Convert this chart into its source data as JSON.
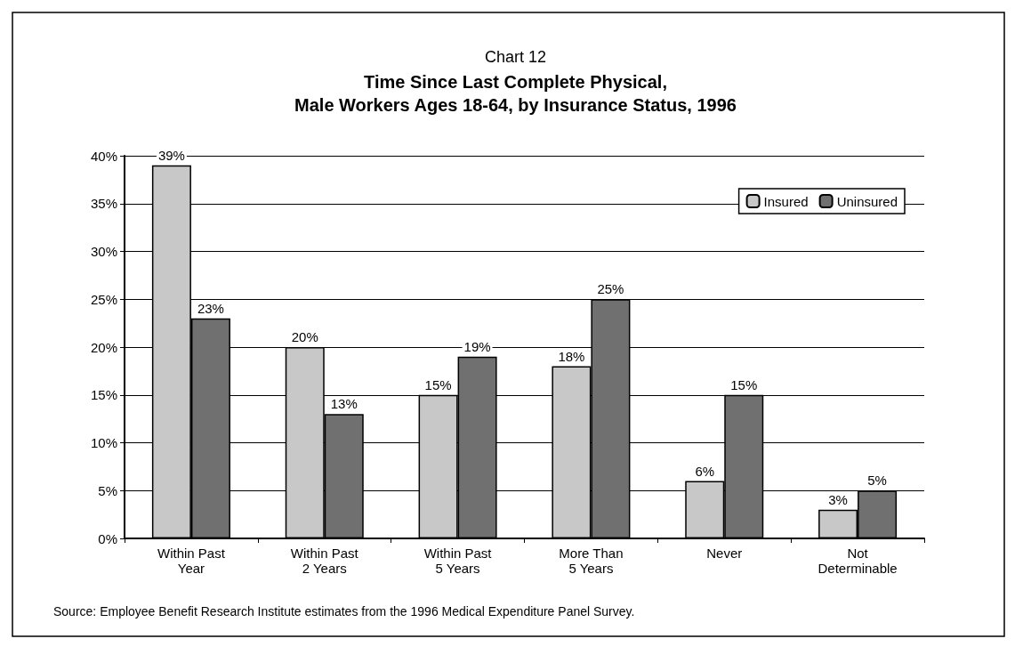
{
  "chart_data": {
    "type": "bar",
    "title": "Chart 12",
    "subtitle": "Time Since Last Complete Physical,\nMale Workers Ages 18-64, by Insurance Status, 1996",
    "categories": [
      "Within Past\nYear",
      "Within Past\n2 Years",
      "Within Past\n5 Years",
      "More Than\n5 Years",
      "Never",
      "Not\nDeterminable"
    ],
    "series": [
      {
        "name": "Insured",
        "color": "#c8c8c8",
        "values": [
          39,
          20,
          15,
          18,
          6,
          3
        ],
        "value_labels": [
          "39%",
          "20%",
          "15%",
          "18%",
          "6%",
          "3%"
        ]
      },
      {
        "name": "Uninsured",
        "color": "#707070",
        "values": [
          23,
          13,
          19,
          25,
          15,
          5
        ],
        "value_labels": [
          "23%",
          "13%",
          "19%",
          "25%",
          "15%",
          "5%"
        ]
      }
    ],
    "ylim": [
      0,
      40
    ],
    "yticks": [
      {
        "value": 0,
        "label": "0%"
      },
      {
        "value": 5,
        "label": "5%"
      },
      {
        "value": 10,
        "label": "10%"
      },
      {
        "value": 15,
        "label": "15%"
      },
      {
        "value": 20,
        "label": "20%"
      },
      {
        "value": 25,
        "label": "25%"
      },
      {
        "value": 30,
        "label": "30%"
      },
      {
        "value": 35,
        "label": "35%"
      },
      {
        "value": 40,
        "label": "40%"
      }
    ],
    "grid": "y",
    "legend": "top right",
    "annotations": [
      "Source: Employee Benefit Research Institute estimates from the 1996 Medical Expenditure Panel Survey."
    ]
  }
}
